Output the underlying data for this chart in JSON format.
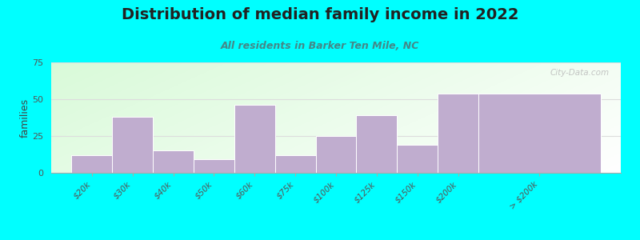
{
  "title": "Distribution of median family income in 2022",
  "subtitle": "All residents in Barker Ten Mile, NC",
  "ylabel": "families",
  "background_color": "#00FFFF",
  "bar_color": "#C0ADCF",
  "categories": [
    "$20k",
    "$30k",
    "$40k",
    "$50k",
    "$60k",
    "$75k",
    "$100k",
    "$125k",
    "$150k",
    "$200k",
    "> $200k"
  ],
  "values": [
    12,
    38,
    15,
    9,
    46,
    12,
    25,
    39,
    19,
    54,
    54
  ],
  "bar_widths": [
    1,
    1,
    1,
    1,
    1,
    1,
    1,
    1,
    1,
    1,
    3
  ],
  "bar_lefts": [
    0,
    1,
    2,
    3,
    4,
    5,
    6,
    7,
    8,
    9,
    10
  ],
  "ylim": [
    0,
    75
  ],
  "yticks": [
    0,
    25,
    50,
    75
  ],
  "watermark": "City-Data.com",
  "title_color": "#222222",
  "subtitle_color": "#448888",
  "ylabel_color": "#444444",
  "tick_color": "#555555",
  "grid_color": "#DDDDDD",
  "title_fontsize": 14,
  "subtitle_fontsize": 9,
  "bg_left_color": "#DDEEDD",
  "bg_right_color": "#F8F8FF"
}
